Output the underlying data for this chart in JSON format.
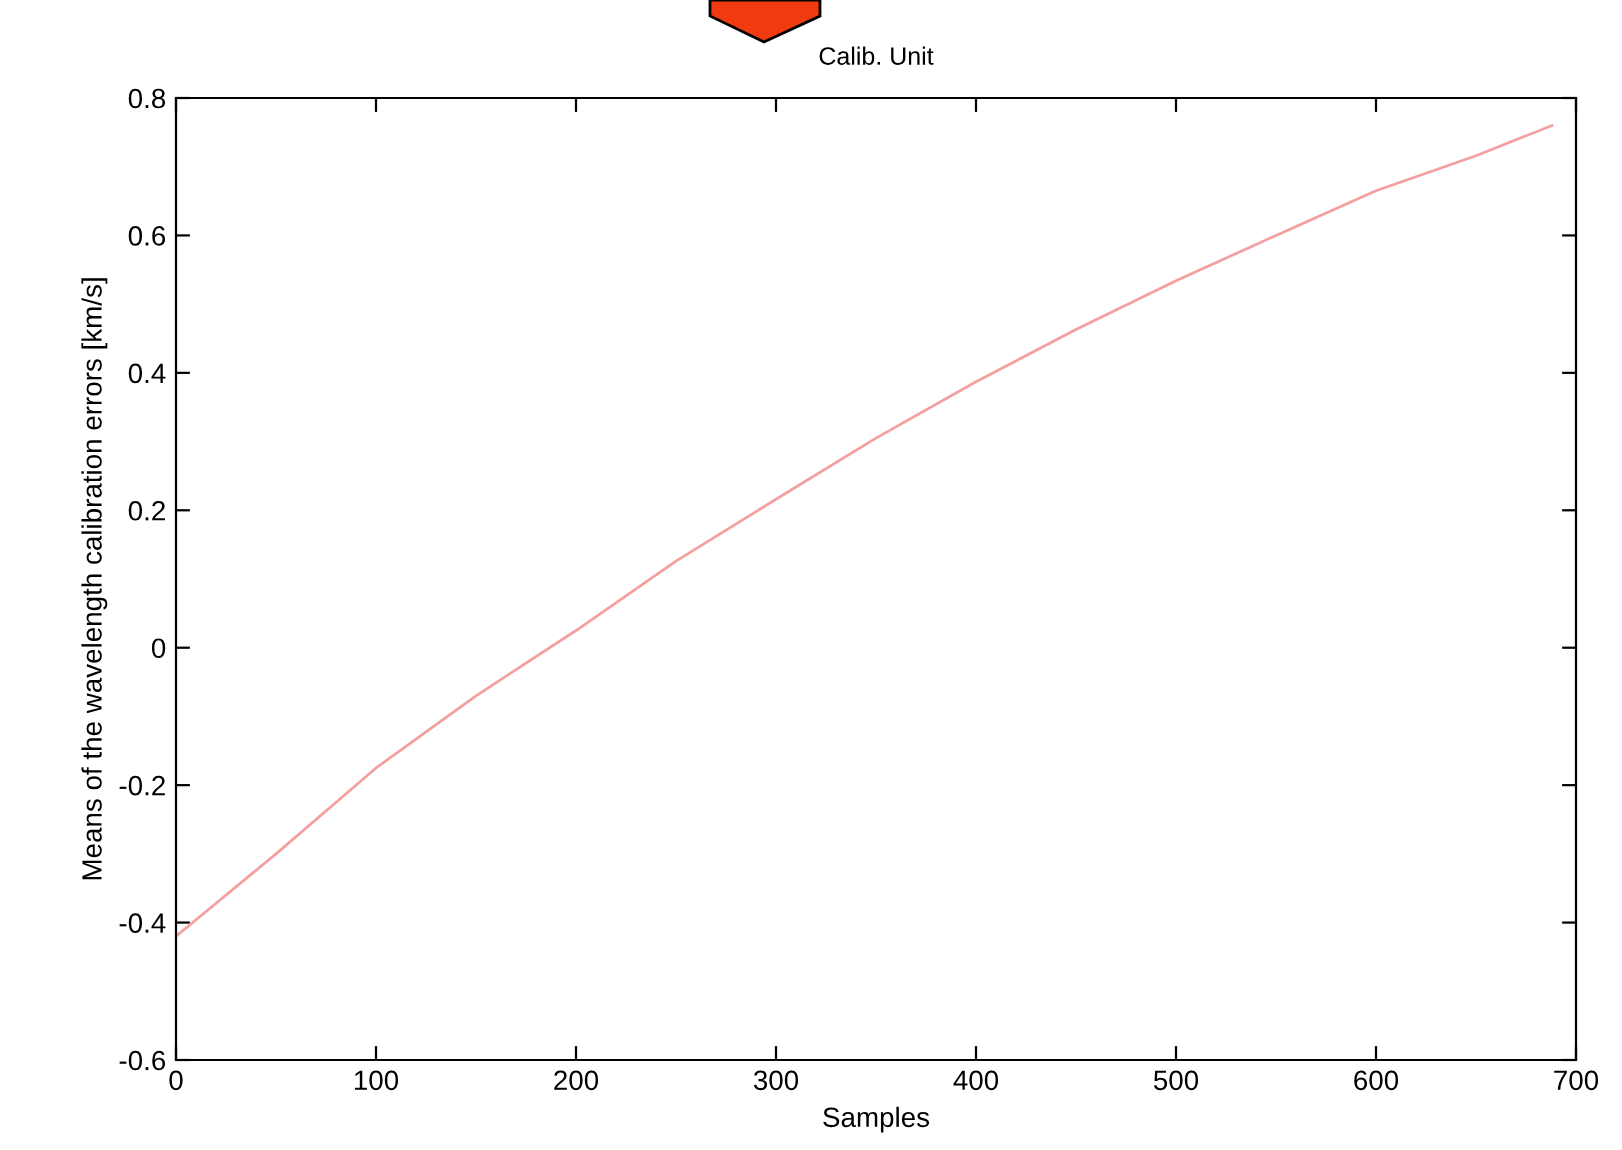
{
  "chart_data": {
    "type": "line",
    "title": "Calib. Unit",
    "xlabel": "Samples",
    "ylabel": "Means of the wavelength calibration errors [km/s]",
    "x": [
      0,
      50,
      100,
      150,
      200,
      250,
      300,
      350,
      400,
      450,
      500,
      550,
      600,
      650,
      688
    ],
    "series": [
      {
        "color": "#f4a0a0",
        "values": [
          -0.42,
          -0.3,
          -0.175,
          -0.07,
          0.025,
          0.126,
          0.216,
          0.305,
          0.387,
          0.463,
          0.534,
          0.6,
          0.665,
          0.716,
          0.76
        ]
      }
    ],
    "xlim": [
      0,
      700
    ],
    "xticks": [
      0,
      100,
      200,
      300,
      400,
      500,
      600,
      700
    ],
    "ylim": [
      -0.6,
      0.8
    ],
    "yticks": [
      -0.6,
      -0.4,
      -0.2,
      0,
      0.2,
      0.4,
      0.6,
      0.8
    ],
    "grid": false,
    "legend": false,
    "marker": "none",
    "line_style": "solid"
  }
}
